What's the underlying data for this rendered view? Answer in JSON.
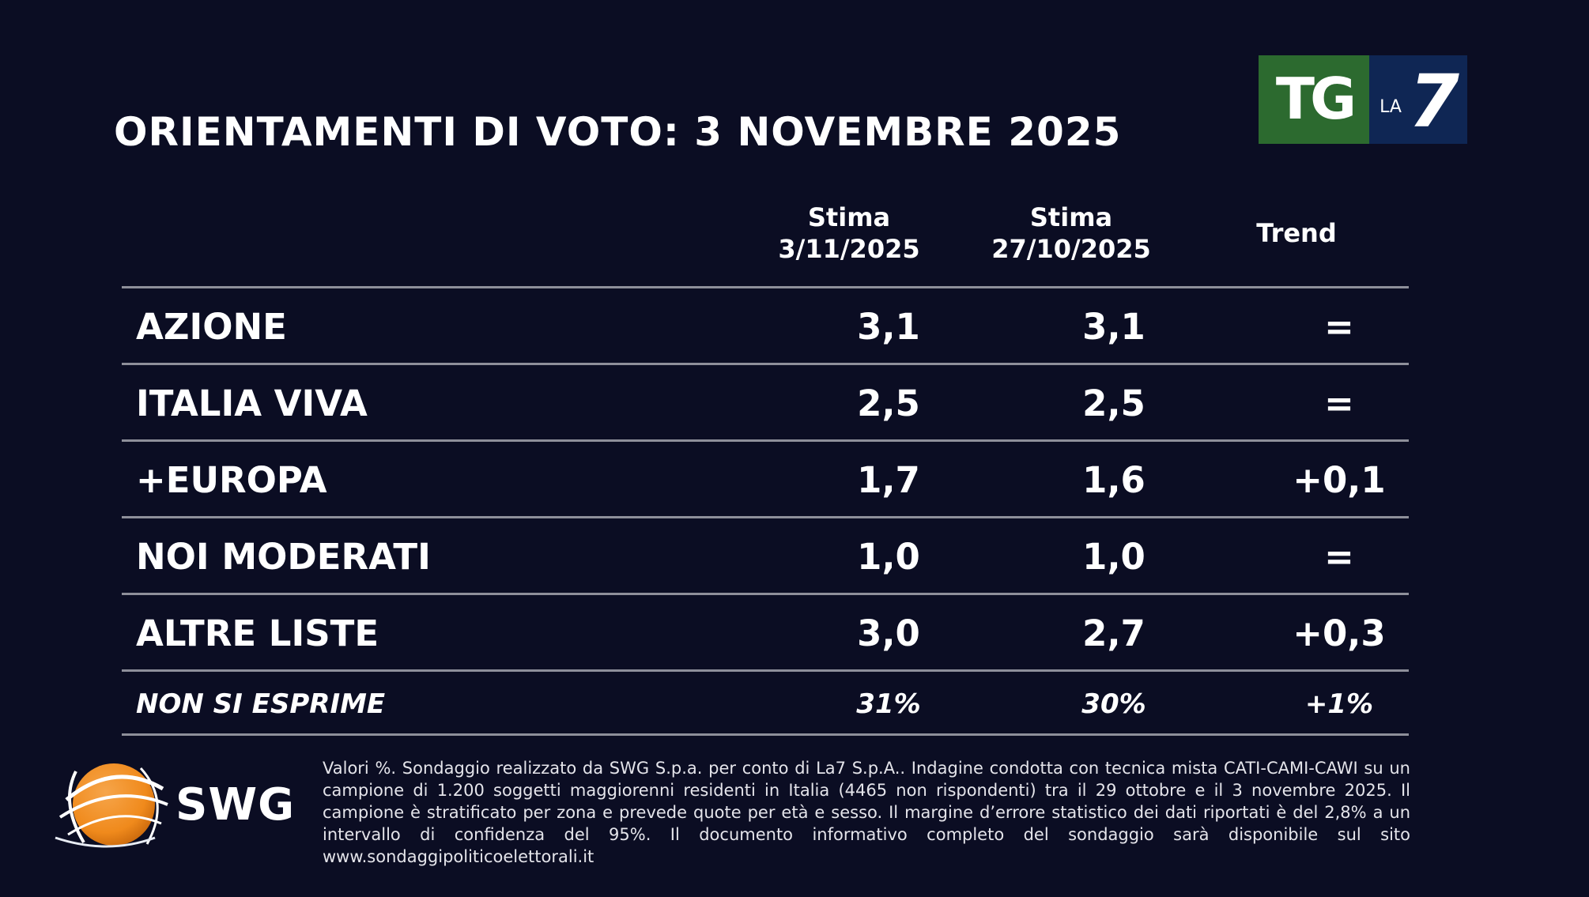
{
  "title": "ORIENTAMENTI DI VOTO: 3 NOVEMBRE 2025",
  "logo_tg": {
    "tg": "TG",
    "la": "LA",
    "seven": "7"
  },
  "columns": {
    "col1_line1": "Stima",
    "col1_line2": "3/11/2025",
    "col2_line1": "Stima",
    "col2_line2": "27/10/2025",
    "col3": "Trend"
  },
  "rows": [
    {
      "name": "AZIONE",
      "v1": "3,1",
      "v2": "3,1",
      "trend": "="
    },
    {
      "name": "ITALIA VIVA",
      "v1": "2,5",
      "v2": "2,5",
      "trend": "="
    },
    {
      "name": "+EUROPA",
      "v1": "1,7",
      "v2": "1,6",
      "trend": "+0,1"
    },
    {
      "name": "NOI MODERATI",
      "v1": "1,0",
      "v2": "1,0",
      "trend": "="
    },
    {
      "name": "ALTRE LISTE",
      "v1": "3,0",
      "v2": "2,7",
      "trend": "+0,3"
    },
    {
      "name": "NON SI ESPRIME",
      "v1": "31%",
      "v2": "30%",
      "trend": "+1%"
    }
  ],
  "swg_label": "SWG",
  "footnote": "Valori %. Sondaggio realizzato da SWG S.p.a. per conto di La7 S.p.A.. Indagine condotta con tecnica mista CATI-CAMI-CAWI su un campione di 1.200 soggetti maggiorenni residenti in Italia (4465 non rispondenti) tra il 29 ottobre e il 3 novembre 2025. Il campione è stratificato per zona e prevede quote per età e sesso. Il margine d’errore statistico dei dati riportati è del 2,8% a un intervallo di confidenza del 95%. Il documento informativo completo del sondaggio sarà disponibile sul sito www.sondaggipoliticoelettorali.it",
  "colors": {
    "background": "#0b0d23",
    "tg_green": "#2c6a2f",
    "la7_blue": "#0f2654",
    "swg_orange": "#f08a1c",
    "divider": "#8e8f9a"
  }
}
